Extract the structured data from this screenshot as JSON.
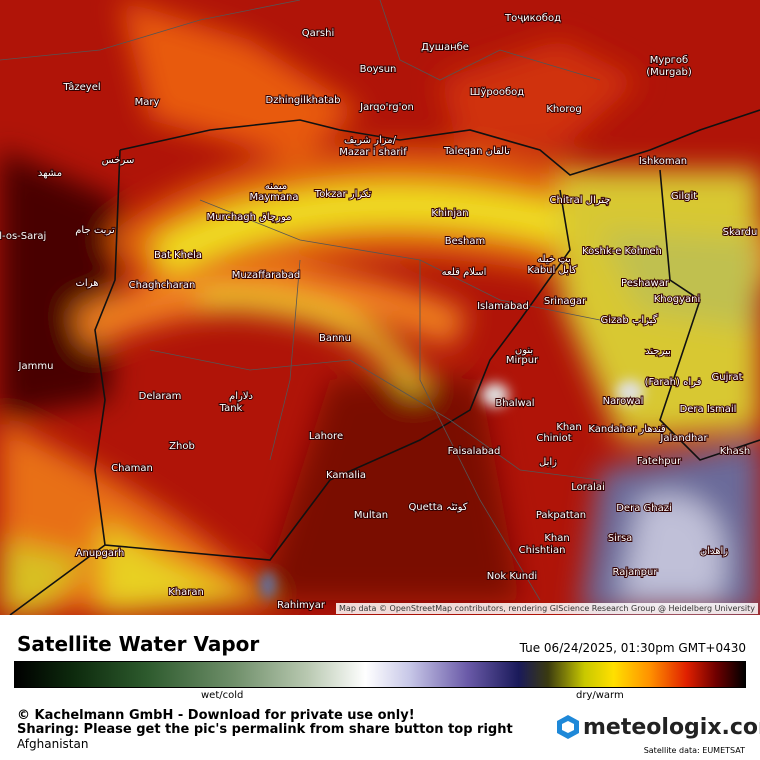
{
  "map": {
    "labels": [
      "Qarshi",
      "Душанбе",
      "Тоҷикобод",
      "Boysun",
      "Мургоб",
      "(Murgab)",
      "Tâzeyel",
      "Mary",
      "Dzhingilkhatab",
      "Jarqo'rg'on",
      "Шўрообод",
      "Khorog",
      "مزار شریف/",
      "Mazar i sharif",
      "Taleqan تالقان",
      "Ishkoman",
      "سرخس",
      "مشهد",
      "میمنه",
      "Maymana",
      "Tokzar تکزار",
      "Chitral چترال",
      "Gilgit",
      "Murchagh مورچاق",
      "Khinjan",
      "تربت جام",
      "Skardu",
      "Jabal-os-Saraj",
      "Besham",
      "Koshk-e Kohneh",
      "Bat Khela",
      "بټ خیله",
      "Kabul کابل",
      "اسلام قلعه",
      "هرات",
      "Chaghcharan",
      "Muzaffarabad",
      "Peshawar",
      "Srinagar",
      "Khogyani",
      "Islamabad",
      "Gizab گیزاب",
      "Bannu",
      "بنوں",
      "Mirpur",
      "بیرجند",
      "Jammu",
      "Gujrat",
      "(Farah) فراه",
      "Delaram",
      "دلارام",
      "Tank",
      "Bhalwal",
      "Narowal",
      "Dera Ismail",
      "Khan",
      "Chiniot",
      "Kandahar قندهار",
      "Lahore",
      "Jalandhar",
      "Khash",
      "Zhob",
      "Faisalabad",
      "Fatehpur",
      "زابل",
      "Chaman",
      "Kamalia",
      "Loralai",
      "Quetta کوئٹہ",
      "Multan",
      "Pakpattan",
      "Dera Ghazi",
      "Khan",
      "Chishtian",
      "Sirsa",
      "زاهدان",
      "Anupgarh",
      "Rajanpur",
      "Nok Kundi",
      "Kharan",
      "Rahimyar"
    ],
    "attribution": "Map data © OpenStreetMap contributors, rendering GIScience Research Group @ Heidelberg University"
  },
  "legend": {
    "title": "Satellite Water Vapor",
    "timestamp": "Tue 06/24/2025, 01:30pm GMT+0430",
    "low_label": "wet/cold",
    "high_label": "dry/warm"
  },
  "footer": {
    "copyright": "© Kachelmann GmbH - Download for private use only!",
    "sharing": "Sharing: Please get the pic's permalink from share button top right",
    "region": "Afghanistan",
    "brand": "meteologix.com",
    "source": "Satellite data: EUMETSAT"
  }
}
